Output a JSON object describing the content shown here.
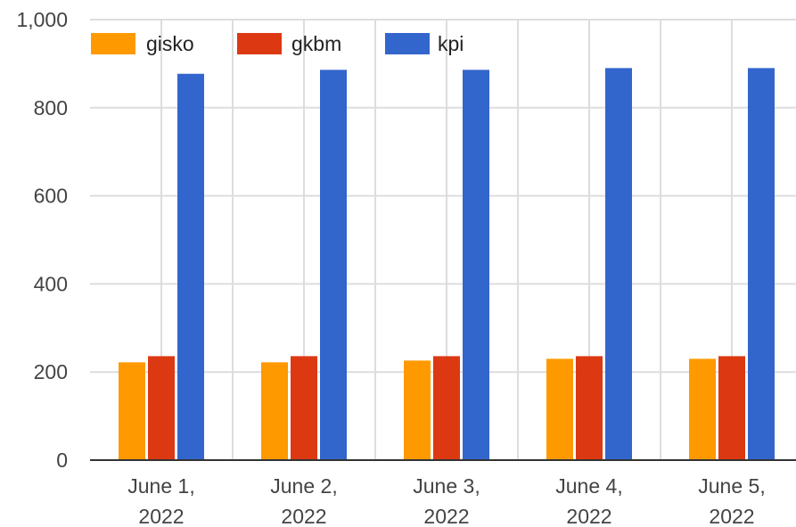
{
  "chart_data": {
    "type": "bar",
    "categories": [
      [
        "June 1,",
        "2022"
      ],
      [
        "June 2,",
        "2022"
      ],
      [
        "June 3,",
        "2022"
      ],
      [
        "June 4,",
        "2022"
      ],
      [
        "June 5,",
        "2022"
      ]
    ],
    "series": [
      {
        "name": "gisko",
        "color": "#ff9900",
        "values": [
          222,
          222,
          226,
          230,
          230
        ]
      },
      {
        "name": "gkbm",
        "color": "#dc3912",
        "values": [
          236,
          236,
          236,
          236,
          236
        ]
      },
      {
        "name": "kpi",
        "color": "#3366cc",
        "values": [
          877,
          886,
          886,
          890,
          890
        ]
      }
    ],
    "ylim": [
      0,
      1000
    ],
    "yticks": [
      "0",
      "200",
      "400",
      "600",
      "800",
      "1,000"
    ],
    "grid": true,
    "legend_position": "top"
  }
}
